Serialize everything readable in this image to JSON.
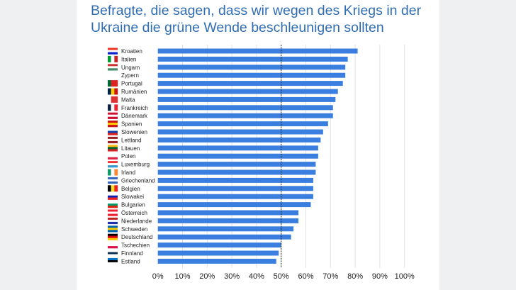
{
  "title": "Befragte, die sagen, dass wir wegen des Kriegs in der Ukraine die grüne Wende beschleunigen sollten",
  "colors": {
    "bar": "#3a7fe0",
    "title": "#2f6db5",
    "reference_line": "#222222"
  },
  "chart_data": {
    "type": "bar",
    "orientation": "horizontal",
    "title": "Befragte, die sagen, dass wir wegen des Kriegs in der Ukraine die grüne Wende beschleunigen sollten",
    "categories": [
      "Kroatien",
      "Italien",
      "Ungarn",
      "Zypern",
      "Portugal",
      "Rumänien",
      "Malta",
      "Frankreich",
      "Dänemark",
      "Spanien",
      "Slowenien",
      "Lettland",
      "Litauen",
      "Polen",
      "Luxemburg",
      "Irland",
      "Griechenland",
      "Belgien",
      "Slowakei",
      "Bulgarien",
      "Österreich",
      "Niederlande",
      "Schweden",
      "Deutschland",
      "Tschechien",
      "Finnland",
      "Estland"
    ],
    "values": [
      81,
      77,
      76,
      76,
      75,
      73,
      72,
      71,
      71,
      69,
      67,
      66,
      65,
      65,
      64,
      64,
      63,
      63,
      63,
      62,
      57,
      57,
      55,
      54,
      50,
      49,
      48
    ],
    "unit": "%",
    "xlim": [
      0,
      100
    ],
    "xticks": [
      "0%",
      "10%",
      "20%",
      "30%",
      "40%",
      "50%",
      "60%",
      "70%",
      "80%",
      "90%",
      "100%"
    ],
    "reference_line": 50,
    "grid": "vertical",
    "category_icons": "country-flags"
  }
}
